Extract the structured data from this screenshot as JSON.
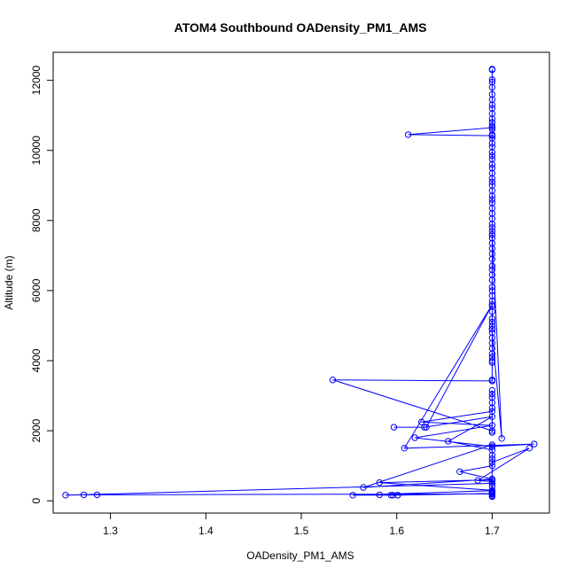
{
  "chart_data": {
    "type": "line",
    "title": "ATOM4 Southbound OADensity_PM1_AMS",
    "xlabel": "OADensity_PM1_AMS",
    "ylabel": "Altitude (m)",
    "xlim": [
      1.24,
      1.76
    ],
    "ylim": [
      -350,
      12800
    ],
    "xticks": [
      1.3,
      1.4,
      1.5,
      1.6,
      1.7
    ],
    "xtick_labels": [
      "1.3",
      "1.4",
      "1.5",
      "1.6",
      "1.7"
    ],
    "yticks": [
      0,
      2000,
      4000,
      6000,
      8000,
      10000,
      12000
    ],
    "ytick_labels": [
      "0",
      "2000",
      "4000",
      "6000",
      "8000",
      "10000",
      "12000"
    ],
    "grid": false,
    "legend": "none",
    "color": "#0000ff",
    "series": [
      {
        "x": [
          1.7,
          1.7,
          1.7,
          1.7,
          1.7,
          1.7,
          1.7,
          1.7,
          1.7,
          1.7,
          1.7,
          1.7,
          1.7,
          1.7,
          1.7,
          1.7,
          1.7,
          1.7,
          1.7,
          1.7,
          1.7,
          1.7,
          1.7,
          1.7,
          1.7,
          1.7,
          1.7,
          1.7,
          1.7,
          1.7,
          1.7,
          1.612,
          1.7,
          1.7,
          1.7,
          1.7,
          1.7,
          1.7,
          1.7,
          1.7,
          1.7,
          1.7,
          1.7,
          1.7,
          1.7,
          1.7,
          1.7,
          1.7,
          1.7,
          1.7,
          1.7,
          1.7,
          1.7,
          1.7,
          1.7,
          1.7,
          1.7,
          1.7,
          1.7,
          1.7,
          1.7,
          1.71,
          1.7,
          1.7,
          1.7,
          1.7,
          1.7,
          1.7,
          1.7,
          1.7,
          1.7,
          1.7,
          1.7,
          1.533,
          1.7,
          1.7,
          1.7,
          1.7,
          1.7,
          1.7,
          1.7,
          1.7,
          1.626,
          1.7,
          1.619,
          1.7,
          1.744,
          1.608,
          1.7,
          1.631,
          1.597,
          1.629,
          1.7,
          1.654,
          1.7,
          1.7,
          1.7,
          1.7,
          1.739,
          1.685,
          1.7,
          1.7,
          1.666,
          1.7,
          1.565,
          1.7,
          1.7,
          1.7,
          1.582,
          1.7,
          1.7,
          1.7,
          1.253,
          1.272,
          1.286,
          1.7,
          1.7,
          1.7,
          1.7,
          1.7,
          1.7,
          1.601,
          1.601,
          1.582,
          1.594,
          1.596,
          1.554,
          1.7,
          1.7
        ],
        "y": [
          12320,
          12300,
          12020,
          11950,
          11800,
          11600,
          11450,
          11300,
          11200,
          11050,
          10900,
          10800,
          10700,
          10600,
          10450,
          10350,
          10200,
          10100,
          9950,
          9850,
          9750,
          9600,
          9500,
          9350,
          9200,
          9100,
          9000,
          8850,
          8700,
          8600,
          10650,
          10450,
          10420,
          8500,
          8350,
          8200,
          8050,
          7900,
          7800,
          7700,
          7600,
          7500,
          7350,
          7200,
          7050,
          6900,
          6700,
          6600,
          6450,
          6300,
          6100,
          6000,
          5850,
          5700,
          5550,
          5400,
          5200,
          5100,
          5000,
          4900,
          7600,
          1780,
          4800,
          4650,
          4500,
          4350,
          4200,
          4100,
          4000,
          3950,
          4900,
          3450,
          3420,
          3450,
          2000,
          1950,
          3150,
          3050,
          2950,
          2800,
          2650,
          2550,
          2250,
          2150,
          1800,
          1550,
          1620,
          1500,
          5600,
          2100,
          2100,
          2100,
          2400,
          1700,
          1450,
          1300,
          1200,
          1100,
          1500,
          580,
          550,
          1000,
          830,
          620,
          380,
          1600,
          420,
          300,
          520,
          600,
          550,
          500,
          160,
          170,
          170,
          200,
          180,
          140,
          120,
          240,
          210,
          160,
          160,
          170,
          160,
          160,
          160,
          290,
          250
        ]
      }
    ]
  }
}
